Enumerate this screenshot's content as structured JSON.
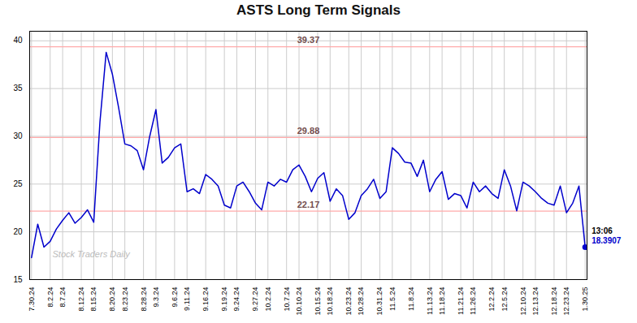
{
  "chart_data": {
    "type": "line",
    "title": "ASTS Long Term Signals",
    "categories": [
      "7.30.24",
      null,
      null,
      "8.2.24",
      null,
      "8.7.24",
      null,
      null,
      "8.12.24",
      null,
      "8.15.24",
      null,
      null,
      "8.20.24",
      null,
      "8.23.24",
      null,
      null,
      "8.28.24",
      null,
      "9.3.24",
      null,
      null,
      "9.6.24",
      null,
      "9.11.24",
      null,
      null,
      "9.16.24",
      null,
      null,
      "9.19.24",
      null,
      "9.24.24",
      null,
      null,
      "9.27.24",
      null,
      "10.2.24",
      null,
      null,
      "10.7.24",
      null,
      "10.10.24",
      null,
      null,
      "10.15.24",
      null,
      "10.18.24",
      null,
      null,
      "10.23.24",
      null,
      "10.28.24",
      null,
      null,
      "10.31.24",
      null,
      "11.5.24",
      null,
      null,
      "11.8.24",
      null,
      null,
      "11.13.24",
      null,
      "11.18.24",
      null,
      null,
      "11.21.24",
      null,
      "11.26.24",
      null,
      null,
      "12.2.24",
      null,
      "12.5.24",
      null,
      null,
      "12.10.24",
      null,
      "12.13.24",
      null,
      null,
      "12.18.24",
      null,
      "12.23.24",
      null,
      null,
      "1.30.25"
    ],
    "values": [
      17.3,
      20.8,
      18.4,
      19.0,
      20.3,
      21.2,
      22.0,
      20.9,
      21.5,
      22.3,
      21.0,
      31.5,
      38.8,
      36.5,
      33.0,
      29.2,
      29.0,
      28.5,
      26.5,
      30.0,
      32.8,
      27.2,
      27.8,
      28.8,
      29.2,
      24.2,
      24.5,
      24.0,
      26.0,
      25.5,
      24.8,
      22.8,
      22.5,
      24.8,
      25.2,
      24.2,
      23.0,
      22.3,
      25.2,
      24.8,
      25.5,
      25.2,
      26.5,
      27.0,
      25.8,
      24.2,
      25.6,
      26.2,
      23.2,
      24.5,
      23.8,
      21.3,
      22.0,
      23.8,
      24.5,
      25.5,
      23.5,
      24.2,
      28.8,
      28.2,
      27.3,
      27.2,
      25.8,
      27.5,
      24.2,
      25.5,
      26.3,
      23.4,
      24.0,
      23.8,
      22.5,
      25.2,
      24.2,
      24.8,
      24.0,
      23.5,
      26.5,
      24.8,
      22.2,
      25.2,
      24.8,
      24.2,
      23.5,
      23.0,
      22.8,
      24.8,
      22.0,
      23.0,
      24.8,
      18.3907
    ],
    "color": "#0000cc",
    "ylim": [
      15,
      41
    ],
    "yticks": [
      15,
      20,
      25,
      30,
      35,
      40
    ],
    "grid": true,
    "reference_lines": [
      {
        "value": 39.37,
        "label": "39.37",
        "color": "#ffaaaa"
      },
      {
        "value": 29.88,
        "label": "29.88",
        "color": "#ffaaaa"
      },
      {
        "value": 22.17,
        "label": "22.17",
        "color": "#ffaaaa"
      }
    ],
    "annotations": [
      {
        "text": "13:06",
        "color": "#000000"
      },
      {
        "text": "18.3907",
        "color": "#0000cc"
      }
    ],
    "watermark": "Stock Traders Daily"
  }
}
